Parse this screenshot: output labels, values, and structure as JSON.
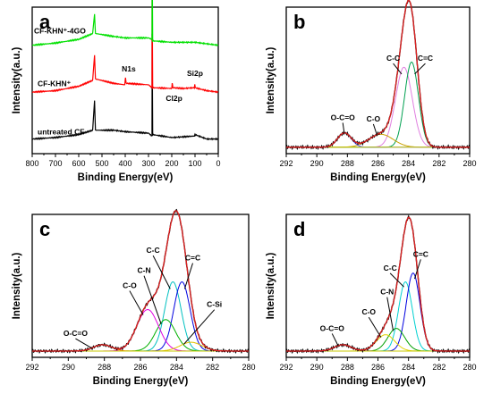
{
  "chart_data": [
    {
      "id": "a",
      "type": "line",
      "panel_label": "a",
      "xlabel": "Binding Energy(eV)",
      "ylabel": "Intensity(a.u.)",
      "xlim": [
        800,
        0
      ],
      "x_ticks": [
        "800",
        "700",
        "600",
        "500",
        "400",
        "300",
        "200",
        "100",
        "0"
      ],
      "x_tick_values": [
        800,
        700,
        600,
        500,
        400,
        300,
        200,
        100,
        0
      ],
      "series": [
        {
          "name": "untreated CF",
          "color": "#000000",
          "offset": 0.1,
          "base": [
            [
              800,
              0.0
            ],
            [
              700,
              0.01
            ],
            [
              600,
              0.03
            ],
            [
              540,
              0.06
            ],
            [
              532,
              0.26
            ],
            [
              528,
              0.06
            ],
            [
              450,
              0.06
            ],
            [
              400,
              0.05
            ],
            [
              300,
              0.04
            ],
            [
              285,
              0.02
            ],
            [
              284.5,
              0.72
            ],
            [
              282,
              0.03
            ],
            [
              200,
              0.01
            ],
            [
              150,
              0.015
            ],
            [
              102,
              0.02
            ],
            [
              100,
              0.03
            ],
            [
              50,
              0.0
            ],
            [
              0,
              0.0
            ]
          ]
        },
        {
          "name": "CF-KHN+",
          "color": "#ff0000",
          "offset": 0.42,
          "base": [
            [
              800,
              0.0
            ],
            [
              700,
              0.01
            ],
            [
              600,
              0.04
            ],
            [
              540,
              0.08
            ],
            [
              532,
              0.25
            ],
            [
              528,
              0.09
            ],
            [
              450,
              0.06
            ],
            [
              402,
              0.05
            ],
            [
              399,
              0.1
            ],
            [
              396,
              0.06
            ],
            [
              300,
              0.05
            ],
            [
              285,
              0.03
            ],
            [
              284.5,
              0.68
            ],
            [
              282,
              0.03
            ],
            [
              200,
              0.025
            ],
            [
              198,
              0.06
            ],
            [
              195,
              0.03
            ],
            [
              150,
              0.025
            ],
            [
              103,
              0.03
            ],
            [
              101,
              0.05
            ],
            [
              99,
              0.03
            ],
            [
              50,
              0.01
            ],
            [
              0,
              0.0
            ]
          ]
        },
        {
          "name": "CF-KHN+-4GO",
          "color": "#00e000",
          "offset": 0.74,
          "base": [
            [
              800,
              0.0
            ],
            [
              700,
              0.015
            ],
            [
              600,
              0.04
            ],
            [
              540,
              0.08
            ],
            [
              532,
              0.21
            ],
            [
              528,
              0.08
            ],
            [
              450,
              0.06
            ],
            [
              400,
              0.05
            ],
            [
              300,
              0.05
            ],
            [
              285,
              0.04
            ],
            [
              284.5,
              0.62
            ],
            [
              282,
              0.03
            ],
            [
              200,
              0.02
            ],
            [
              150,
              0.02
            ],
            [
              100,
              0.02
            ],
            [
              50,
              0.01
            ],
            [
              0,
              0.0
            ]
          ]
        }
      ],
      "annotations": [
        "N1s",
        "Si2p",
        "Cl2p",
        "CF-KHN⁺-4GO",
        "CF-KHN⁺",
        "untreated CF"
      ]
    },
    {
      "id": "b",
      "type": "line",
      "panel_label": "b",
      "xlabel": "Binding Energy(eV)",
      "ylabel": "Intensity(a.u.)",
      "xlim": [
        292,
        280
      ],
      "x_ticks": [
        "292",
        "290",
        "288",
        "286",
        "284",
        "282",
        "280"
      ],
      "x_tick_values": [
        292,
        290,
        288,
        286,
        284,
        282,
        280
      ],
      "peaks": [
        {
          "name": "C-C",
          "center": 284.3,
          "height": 0.62,
          "width": 0.55,
          "color": "#e080e0"
        },
        {
          "name": "C=C",
          "center": 283.8,
          "height": 0.66,
          "width": 0.45,
          "color": "#00a050"
        },
        {
          "name": "C-O",
          "center": 285.8,
          "height": 0.1,
          "width": 0.8,
          "color": "#c8a000"
        },
        {
          "name": "O-C=O",
          "center": 288.2,
          "height": 0.11,
          "width": 0.45,
          "color": "#5050ff"
        }
      ],
      "annotations": [
        "O-C=O",
        "C-O",
        "C-C",
        "C=C"
      ]
    },
    {
      "id": "c",
      "type": "line",
      "panel_label": "c",
      "xlabel": "Binding Energy(eV)",
      "ylabel": "Intensity(a.u.)",
      "xlim": [
        292,
        280
      ],
      "x_ticks": [
        "292",
        "290",
        "288",
        "286",
        "284",
        "282",
        "280"
      ],
      "x_tick_values": [
        292,
        290,
        288,
        286,
        284,
        282,
        280
      ],
      "peaks": [
        {
          "name": "C-C",
          "center": 284.2,
          "height": 0.55,
          "width": 0.45,
          "color": "#00c0c0"
        },
        {
          "name": "C=C",
          "center": 283.7,
          "height": 0.55,
          "width": 0.45,
          "color": "#0000e0"
        },
        {
          "name": "C-N",
          "center": 284.6,
          "height": 0.25,
          "width": 0.55,
          "color": "#00b000"
        },
        {
          "name": "C-O",
          "center": 285.6,
          "height": 0.33,
          "width": 0.6,
          "color": "#e000e0"
        },
        {
          "name": "C-Si",
          "center": 283.2,
          "height": 0.07,
          "width": 0.6,
          "color": "#e0c000"
        },
        {
          "name": "O-C=O",
          "center": 288.1,
          "height": 0.05,
          "width": 0.5,
          "color": "#ff8000"
        }
      ],
      "annotations": [
        "O-C=O",
        "C-O",
        "C-N",
        "C-C",
        "C=C",
        "C-Si"
      ]
    },
    {
      "id": "d",
      "type": "line",
      "panel_label": "d",
      "xlabel": "Binding Energy(eV)",
      "ylabel": "Intensity(a.u.)",
      "xlim": [
        292,
        280
      ],
      "x_ticks": [
        "292",
        "290",
        "288",
        "286",
        "284",
        "282",
        "280"
      ],
      "x_tick_values": [
        292,
        290,
        288,
        286,
        284,
        282,
        280
      ],
      "peaks": [
        {
          "name": "C-C",
          "center": 284.2,
          "height": 0.55,
          "width": 0.45,
          "color": "#00d0d0"
        },
        {
          "name": "C=C",
          "center": 283.7,
          "height": 0.62,
          "width": 0.45,
          "color": "#0000e0"
        },
        {
          "name": "C-N",
          "center": 284.8,
          "height": 0.18,
          "width": 0.55,
          "color": "#00a000"
        },
        {
          "name": "C-O",
          "center": 285.5,
          "height": 0.13,
          "width": 0.6,
          "color": "#e0d000"
        },
        {
          "name": "O-C=O",
          "center": 288.3,
          "height": 0.05,
          "width": 0.55,
          "color": "#e000e0"
        }
      ],
      "annotations": [
        "O-C=O",
        "C-O",
        "C-N",
        "C-C",
        "C=C"
      ]
    }
  ]
}
